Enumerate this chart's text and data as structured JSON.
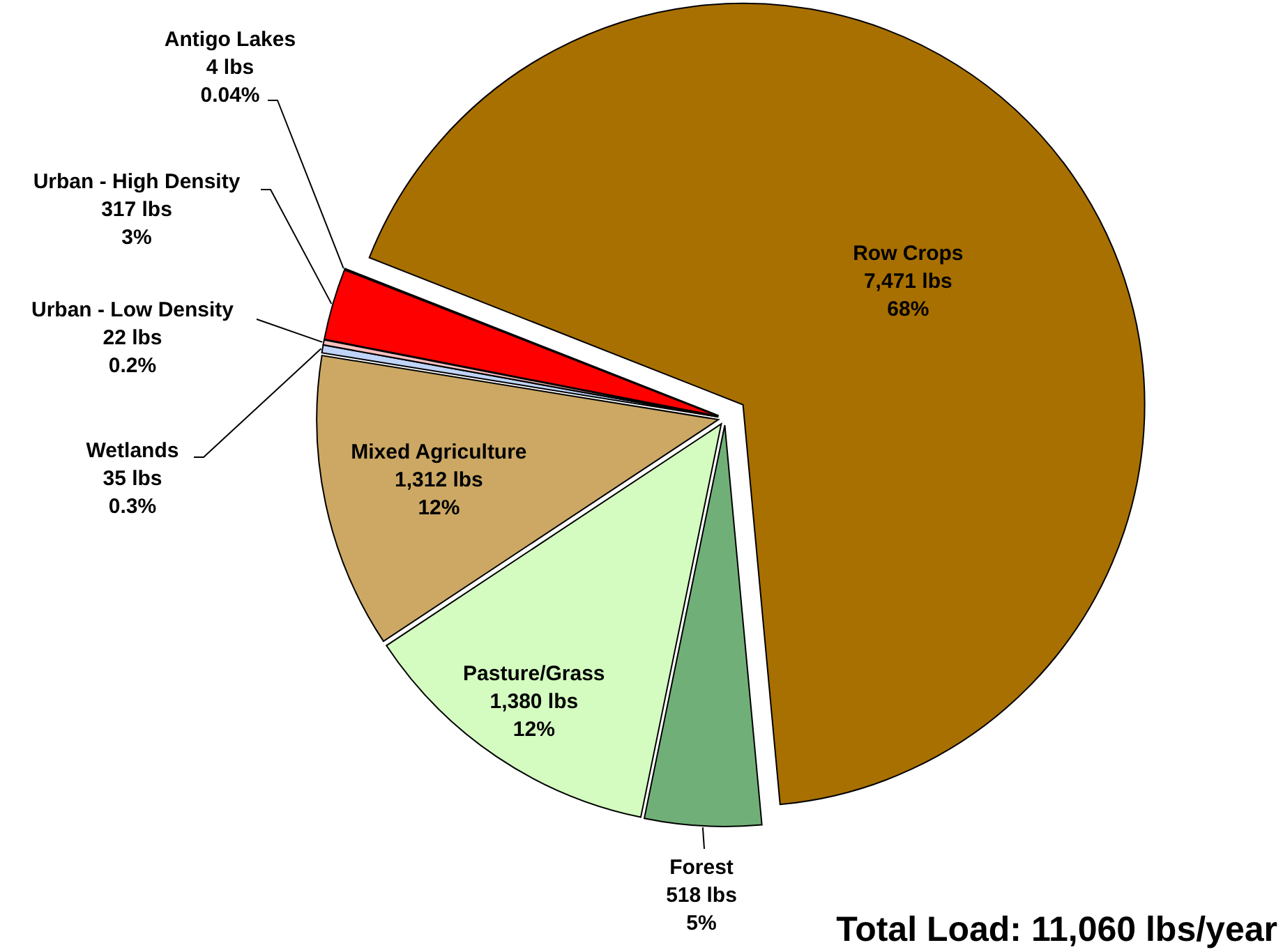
{
  "chart_data": {
    "type": "pie",
    "categories": [
      "Row Crops",
      "Forest",
      "Pasture/Grass",
      "Mixed Agriculture",
      "Wetlands",
      "Urban - Low Density",
      "Urban - High Density",
      "Antigo Lakes"
    ],
    "values": [
      7471,
      518,
      1380,
      1312,
      35,
      22,
      317,
      4
    ],
    "colors": [
      "#a87000",
      "#70b078",
      "#d4fcc0",
      "#cca864",
      "#c0d4f8",
      "#ffc0c0",
      "#ff0000",
      "#000080"
    ],
    "value_labels": [
      "7,471 lbs\n68%",
      "518 lbs\n5%",
      "1,380 lbs\n12%",
      "1,312 lbs\n12%",
      "35 lbs\n0.3%",
      "22 lbs\n0.2%",
      "317 lbs\n3%",
      "4 lbs\n0.04%"
    ],
    "annotations": [
      "Total Load: 11,060 lbs/year"
    ]
  }
}
